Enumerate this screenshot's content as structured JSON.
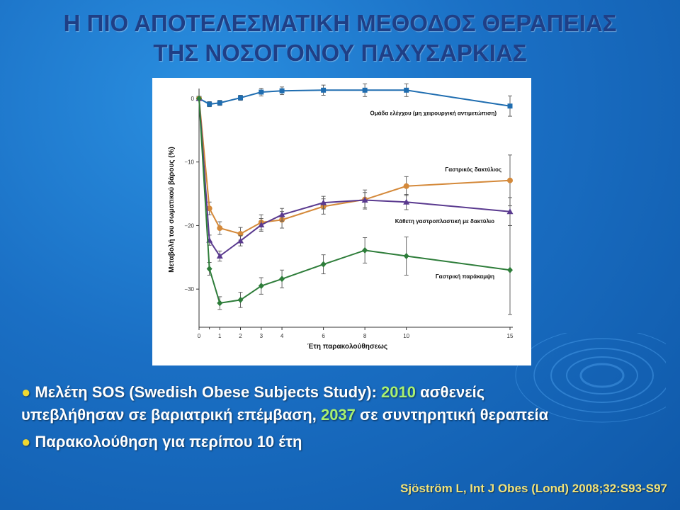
{
  "slide": {
    "title_line1": "Η ΠΙΟ ΑΠΟΤΕΛΕΣΜΑΤΙΚΗ ΜΕΘΟΔΟΣ ΘΕΡΑΠΕΙΑΣ",
    "title_line2": "ΤΗΣ ΝΟΣΟΓΟΝΟΥ ΠΑΧΥΣΑΡΚΙΑΣ",
    "bullet1_prefix": "Μελέτη SOS (Swedish Obese Subjects Study): ",
    "bullet1_num1": "2010",
    "bullet1_mid": " ασθενείς",
    "bullet1_line2_pre": "υπεβλήθησαν σε βαριατρική επέμβαση, ",
    "bullet1_num2": "2037",
    "bullet1_line2_post": " σε συντηρητική θεραπεία",
    "bullet2": "Παρακολούθηση για περίπου 10 έτη",
    "bullet_symbol": "●",
    "citation": "Sjöström L, Int J Obes (Lond) 2008;32:S93-S97",
    "colors": {
      "title": "#1f3f86",
      "highlight": "#a8f070",
      "bullet_dot": "#f0d830",
      "citation": "#f0e27a"
    }
  },
  "chart_data": {
    "type": "line",
    "title": "",
    "xlabel": "Έτη παρακολούθησεως",
    "ylabel": "Μεταβολή του σωματικού βάρους (%)",
    "xlim": [
      0,
      15
    ],
    "ylim": [
      -36,
      1
    ],
    "x_ticks": [
      0,
      1,
      2,
      3,
      4,
      6,
      8,
      10,
      15
    ],
    "x_tick_labels": [
      "0",
      "1",
      "2",
      "3",
      "4",
      "6",
      "8",
      "10",
      "15"
    ],
    "y_ticks": [
      0,
      -10,
      -20,
      -30
    ],
    "y_tick_labels": [
      "0",
      "−10",
      "−20",
      "−30"
    ],
    "grid": false,
    "legend": "inline labels",
    "series": [
      {
        "name": "Ομάδα ελέγχου (μη χειρουργική αντιμετώπιση)",
        "color": "#1f6db0",
        "marker": "square",
        "x": [
          0,
          0.5,
          1,
          2,
          3,
          4,
          6,
          8,
          10,
          15
        ],
        "y": [
          0,
          -0.9,
          -0.7,
          0.1,
          1.0,
          1.2,
          1.3,
          1.3,
          1.3,
          -1.2
        ],
        "err": [
          0,
          0.4,
          0.4,
          0.4,
          0.6,
          0.6,
          0.8,
          1.0,
          1.0,
          1.6
        ]
      },
      {
        "name": "Γαστρικός δακτύλιος",
        "color": "#d4893a",
        "marker": "circle",
        "x": [
          0,
          0.5,
          1,
          2,
          3,
          4,
          6,
          8,
          10,
          15
        ],
        "y": [
          0,
          -17.3,
          -20.4,
          -21.3,
          -19.5,
          -19.1,
          -17.0,
          -15.9,
          -13.8,
          -12.9
        ],
        "err": [
          0,
          1.0,
          1.0,
          1.0,
          1.2,
          1.3,
          1.2,
          1.5,
          1.5,
          4.0
        ]
      },
      {
        "name": "Κάθετη γαστροπλαστική με δακτύλιο",
        "color": "#5a3a8f",
        "marker": "triangle",
        "x": [
          0,
          0.5,
          1,
          2,
          3,
          4,
          6,
          8,
          10,
          15
        ],
        "y": [
          0,
          -22.3,
          -24.8,
          -22.4,
          -19.9,
          -18.3,
          -16.4,
          -16.0,
          -16.3,
          -17.8
        ],
        "err": [
          0,
          0.8,
          0.8,
          0.8,
          1.0,
          1.0,
          1.0,
          1.2,
          1.2,
          2.2
        ]
      },
      {
        "name": "Γαστρική παράκαμψη",
        "color": "#2e7d3a",
        "marker": "diamond",
        "x": [
          0,
          0.5,
          1,
          2,
          3,
          4,
          6,
          8,
          10,
          15
        ],
        "y": [
          0,
          -26.8,
          -32.2,
          -31.7,
          -29.5,
          -28.4,
          -26.1,
          -23.9,
          -24.8,
          -27.0
        ],
        "err": [
          0,
          1.0,
          1.0,
          1.2,
          1.3,
          1.4,
          1.5,
          2.0,
          3.0,
          7.0
        ]
      }
    ],
    "annotations": [
      {
        "text": "Ομάδα ελέγχου (μη χειρουργική αντιμετώπιση)"
      },
      {
        "text": "Γαστρικός δακτύλιος"
      },
      {
        "text": "Κάθετη γαστροπλαστική με δακτύλιο"
      },
      {
        "text": "Γαστρική παράκαμψη"
      }
    ]
  }
}
